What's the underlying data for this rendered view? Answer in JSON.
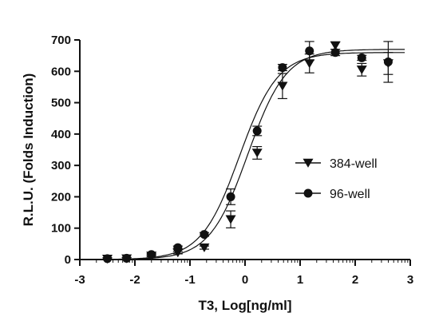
{
  "chart_data": {
    "type": "scatter",
    "title": "",
    "xlabel": "T3, Log[ng/ml]",
    "ylabel": "R.L.U. (Folds Induction)",
    "xlim": [
      -3,
      3
    ],
    "ylim": [
      0,
      700
    ],
    "x_ticks": [
      -3,
      -2,
      -1,
      0,
      1,
      2,
      3
    ],
    "y_ticks": [
      0,
      100,
      200,
      300,
      400,
      500,
      600,
      700
    ],
    "legend_position": "center-right",
    "series": [
      {
        "name": "384-well",
        "marker": "triangle-down",
        "color": "#111111",
        "points": [
          {
            "x": -2.5,
            "y": 2,
            "err": 3
          },
          {
            "x": -2.15,
            "y": 3,
            "err": 3
          },
          {
            "x": -1.7,
            "y": 12,
            "err": 3
          },
          {
            "x": -1.22,
            "y": 22,
            "err": 4
          },
          {
            "x": -0.74,
            "y": 38,
            "err": 5
          },
          {
            "x": -0.26,
            "y": 128,
            "err": 27
          },
          {
            "x": 0.22,
            "y": 340,
            "err": 20
          },
          {
            "x": 0.68,
            "y": 553,
            "err": 40
          },
          {
            "x": 1.17,
            "y": 625,
            "err": 30
          },
          {
            "x": 1.64,
            "y": 682,
            "err": 12
          },
          {
            "x": 2.12,
            "y": 605,
            "err": 20
          },
          {
            "x": 2.6,
            "y": 625,
            "err": 35
          }
        ],
        "curve": {
          "bottom": 0,
          "top": 670,
          "logEC50": 0.05,
          "hill": 1.25
        }
      },
      {
        "name": "96-well",
        "marker": "circle",
        "color": "#111111",
        "points": [
          {
            "x": -2.5,
            "y": 3,
            "err": 3
          },
          {
            "x": -2.15,
            "y": 4,
            "err": 3
          },
          {
            "x": -1.7,
            "y": 16,
            "err": 3
          },
          {
            "x": -1.22,
            "y": 38,
            "err": 5
          },
          {
            "x": -0.74,
            "y": 80,
            "err": 6
          },
          {
            "x": -0.26,
            "y": 200,
            "err": 25
          },
          {
            "x": 0.22,
            "y": 410,
            "err": 15
          },
          {
            "x": 0.68,
            "y": 612,
            "err": 10
          },
          {
            "x": 1.17,
            "y": 665,
            "err": 30
          },
          {
            "x": 1.64,
            "y": 660,
            "err": 10
          },
          {
            "x": 2.12,
            "y": 643,
            "err": 8
          },
          {
            "x": 2.6,
            "y": 630,
            "err": 65
          }
        ],
        "curve": {
          "bottom": 0,
          "top": 660,
          "logEC50": -0.1,
          "hill": 1.25
        }
      }
    ]
  }
}
